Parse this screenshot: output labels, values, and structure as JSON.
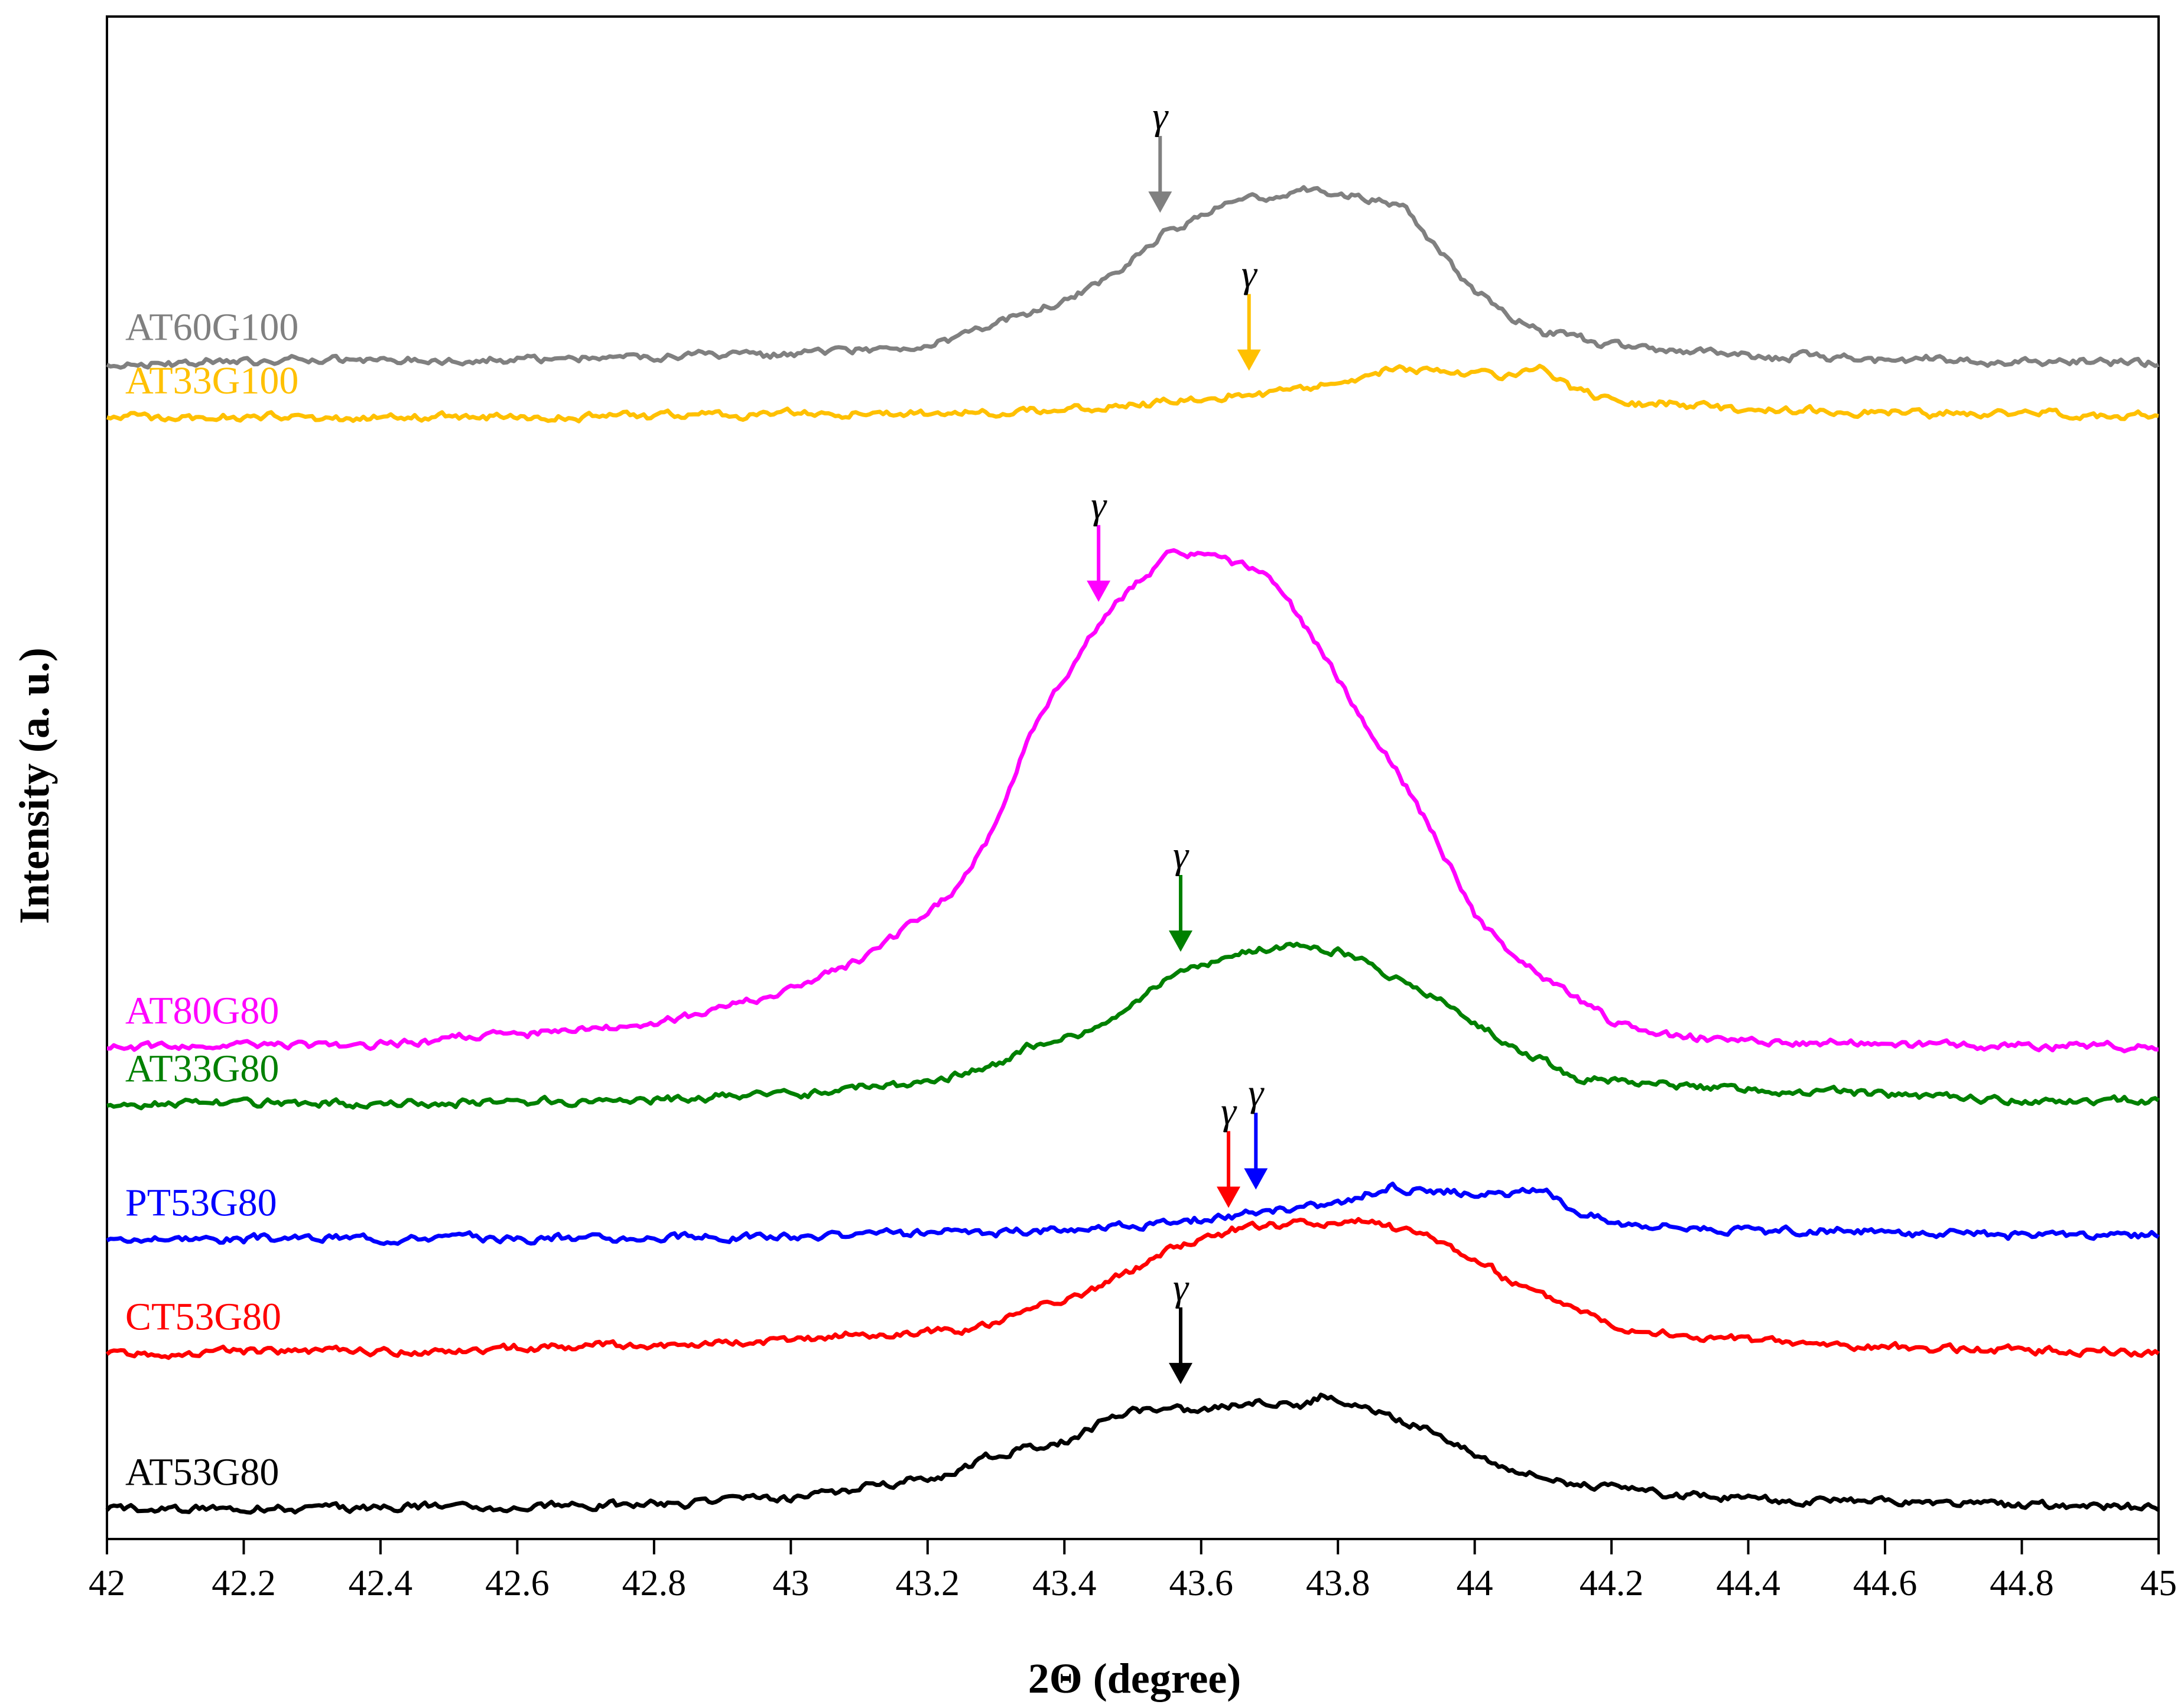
{
  "chart_data": {
    "type": "line",
    "title": "",
    "xlabel": "2Θ (degree)",
    "ylabel": "Intensity (a. u.)",
    "xlim": [
      42,
      45
    ],
    "ylim": [
      0,
      100
    ],
    "yticks_visible": false,
    "grid": false,
    "legend": "inline labels at left of each trace",
    "xticks": [
      "42",
      "42.2",
      "42.4",
      "42.6",
      "42.8",
      "43",
      "43.2",
      "43.4",
      "43.6",
      "43.8",
      "44",
      "44.2",
      "44.4",
      "44.6",
      "44.8",
      "45"
    ],
    "xtick_values": [
      42,
      42.2,
      42.4,
      42.6,
      42.8,
      43,
      43.2,
      43.4,
      43.6,
      43.8,
      44,
      44.2,
      44.4,
      44.6,
      44.8,
      45
    ],
    "peak_marker_label": "γ",
    "series": [
      {
        "name": "AT60G100",
        "color": "#808080",
        "x": [
          42.0,
          42.4,
          42.8,
          43.0,
          43.15,
          43.25,
          43.3,
          43.35,
          43.4,
          43.45,
          43.5,
          43.55,
          43.6,
          43.65,
          43.7,
          43.75,
          43.8,
          43.85,
          43.9,
          43.95,
          44.0,
          44.05,
          44.1,
          44.2,
          44.4,
          44.7,
          45.0
        ],
        "y": [
          77.2,
          77.4,
          77.6,
          77.8,
          78.2,
          79.0,
          79.8,
          80.5,
          81.3,
          82.4,
          84.2,
          85.9,
          86.7,
          88.1,
          88.2,
          88.6,
          88.3,
          88.0,
          87.4,
          84.4,
          82.0,
          80.5,
          79.3,
          78.4,
          77.7,
          77.4,
          77.3
        ],
        "label_color": "#808080",
        "marker": {
          "x": 43.54,
          "color": "#808080"
        }
      },
      {
        "name": "AT33G100",
        "color": "#FFC000",
        "x": [
          42.0,
          42.4,
          42.8,
          43.0,
          43.2,
          43.4,
          43.6,
          43.7,
          43.8,
          43.88,
          43.95,
          44.05,
          44.1,
          44.15,
          44.2,
          44.4,
          44.7,
          45.0
        ],
        "y": [
          73.7,
          73.7,
          73.8,
          73.8,
          73.9,
          74.2,
          74.9,
          75.3,
          76.0,
          77.0,
          76.6,
          76.5,
          76.8,
          75.5,
          74.8,
          74.2,
          73.9,
          73.8
        ],
        "label_color": "#FFC000",
        "marker": {
          "x": 43.67,
          "color": "#FFC000"
        }
      },
      {
        "name": "AT80G80",
        "color": "#FF00FF",
        "x": [
          42.0,
          42.4,
          42.8,
          43.0,
          43.1,
          43.2,
          43.25,
          43.3,
          43.35,
          43.4,
          43.45,
          43.5,
          43.55,
          43.6,
          43.65,
          43.7,
          43.75,
          43.8,
          43.85,
          43.9,
          43.95,
          44.0,
          44.05,
          44.1,
          44.15,
          44.2,
          44.3,
          44.5,
          44.7,
          45.0
        ],
        "y": [
          32.3,
          32.5,
          33.8,
          36.0,
          38.0,
          41.0,
          43.0,
          47.0,
          53.0,
          56.5,
          60.0,
          62.5,
          64.5,
          64.6,
          64.0,
          63.5,
          60.0,
          56.5,
          53.0,
          49.5,
          45.5,
          41.0,
          38.5,
          37.0,
          35.5,
          34.0,
          33.0,
          32.6,
          32.4,
          32.3
        ],
        "label_color": "#FF00FF",
        "marker": {
          "x": 43.45,
          "color": "#FF00FF"
        }
      },
      {
        "name": "AT33G80",
        "color": "#008000",
        "x": [
          42.0,
          42.4,
          42.8,
          43.0,
          43.2,
          43.3,
          43.35,
          43.45,
          43.5,
          43.55,
          43.6,
          43.65,
          43.7,
          43.75,
          43.8,
          43.85,
          43.9,
          43.95,
          44.0,
          44.05,
          44.1,
          44.15,
          44.3,
          44.5,
          44.7,
          45.0
        ],
        "y": [
          28.5,
          28.6,
          28.9,
          29.2,
          30.0,
          31.0,
          32.5,
          33.5,
          35.0,
          36.7,
          37.5,
          38.5,
          38.8,
          39.1,
          38.6,
          37.7,
          36.5,
          35.3,
          34.0,
          32.5,
          31.5,
          30.3,
          29.8,
          29.4,
          29.0,
          28.8
        ],
        "label_color": "#008000",
        "marker": {
          "x": 43.57,
          "color": "#008000"
        }
      },
      {
        "name": "PT53G80",
        "color": "#0000FF",
        "x": [
          42.0,
          42.4,
          42.8,
          43.0,
          43.2,
          43.4,
          43.6,
          43.7,
          43.8,
          43.88,
          43.95,
          44.05,
          44.1,
          44.15,
          44.2,
          44.4,
          44.7,
          45.0
        ],
        "y": [
          19.7,
          19.8,
          19.8,
          19.9,
          20.0,
          20.3,
          21.0,
          21.5,
          22.1,
          23.1,
          22.7,
          22.6,
          22.9,
          21.6,
          20.9,
          20.3,
          20.0,
          19.9
        ],
        "label_color": "#0000FF",
        "marker": {
          "x": 43.68,
          "color": "#0000FF"
        }
      },
      {
        "name": "CT53G80",
        "color": "#FF0000",
        "x": [
          42.0,
          42.4,
          42.8,
          43.0,
          43.2,
          43.3,
          43.35,
          43.45,
          43.5,
          43.55,
          43.6,
          43.65,
          43.7,
          43.75,
          43.8,
          43.85,
          43.9,
          43.95,
          44.0,
          44.05,
          44.1,
          44.15,
          44.2,
          44.3,
          44.5,
          44.7,
          45.0
        ],
        "y": [
          12.2,
          12.4,
          12.7,
          13.0,
          13.6,
          14.2,
          15.3,
          16.5,
          17.8,
          19.0,
          19.8,
          20.3,
          20.6,
          20.8,
          20.7,
          20.8,
          20.3,
          19.5,
          18.3,
          17.0,
          16.0,
          15.2,
          14.2,
          13.3,
          12.8,
          12.5,
          12.3
        ],
        "label_color": "#FF0000",
        "marker": {
          "x": 43.64,
          "color": "#FF0000"
        }
      },
      {
        "name": "AT53G80",
        "color": "#000000",
        "x": [
          42.0,
          42.4,
          42.8,
          43.0,
          43.1,
          43.2,
          43.3,
          43.4,
          43.5,
          43.55,
          43.6,
          43.65,
          43.7,
          43.75,
          43.78,
          43.85,
          43.9,
          43.95,
          44.0,
          44.05,
          44.1,
          44.2,
          44.3,
          44.5,
          44.7,
          45.0
        ],
        "y": [
          2.0,
          2.1,
          2.3,
          2.7,
          3.3,
          4.0,
          5.5,
          6.5,
          8.5,
          8.7,
          8.5,
          8.8,
          9.0,
          8.9,
          9.5,
          8.4,
          7.6,
          7.0,
          5.5,
          4.7,
          4.0,
          3.3,
          2.9,
          2.5,
          2.3,
          2.1
        ],
        "label_color": "#000000",
        "marker": {
          "x": 43.57,
          "color": "#000000"
        }
      }
    ]
  }
}
